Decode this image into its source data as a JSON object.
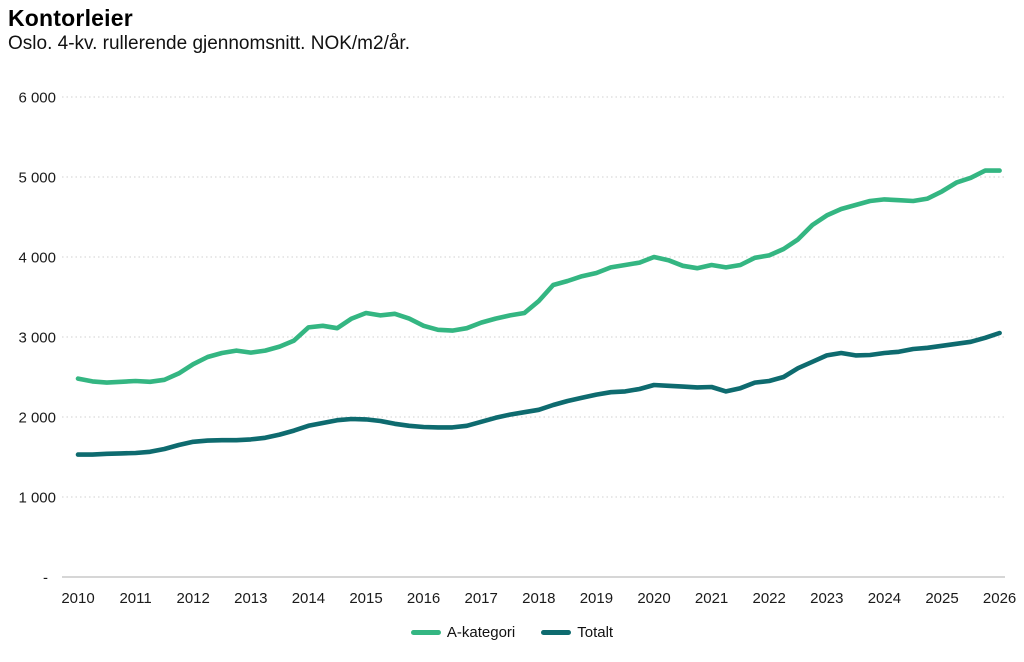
{
  "header": {
    "title": "Kontorleier",
    "subtitle": "Oslo. 4-kv. rullerende gjennomsnitt. NOK/m2/år."
  },
  "colors": {
    "a_kategori": "#34b682",
    "totalt": "#0e6b6f",
    "gridline": "#d9d9d9",
    "axis_line": "#c9c9c9",
    "tick_text": "#1a1a1a"
  },
  "chart_data": {
    "type": "line",
    "title": "Kontorleier",
    "subtitle": "Oslo. 4-kv. rullerende gjennomsnitt. NOK/m2/år.",
    "x_unit": "quarterly",
    "x_start_year": 2010,
    "points_per_year": 4,
    "x_tick_labels": [
      "2010",
      "2011",
      "2012",
      "2013",
      "2014",
      "2015",
      "2016",
      "2017",
      "2018",
      "2019",
      "2020",
      "2021",
      "2022",
      "2023",
      "2024",
      "2025",
      "2026"
    ],
    "y_ticks": [
      {
        "label": "6 000",
        "value": 6000
      },
      {
        "label": "5 000",
        "value": 5000
      },
      {
        "label": "4 000",
        "value": 4000
      },
      {
        "label": "3 000",
        "value": 3000
      },
      {
        "label": "2 000",
        "value": 2000
      },
      {
        "label": "1 000",
        "value": 1000
      },
      {
        "label": "-",
        "value": 0
      }
    ],
    "ylim": [
      0,
      6000
    ],
    "grid": "horizontal-dotted",
    "legend_position": "bottom-center",
    "series": [
      {
        "name": "A-kategori",
        "color_key": "a_kategori",
        "values": [
          2480,
          2445,
          2430,
          2440,
          2450,
          2440,
          2465,
          2545,
          2660,
          2750,
          2800,
          2830,
          2805,
          2830,
          2880,
          2955,
          3120,
          3140,
          3110,
          3230,
          3300,
          3270,
          3290,
          3230,
          3140,
          3090,
          3080,
          3110,
          3180,
          3230,
          3270,
          3300,
          3450,
          3650,
          3700,
          3760,
          3800,
          3870,
          3900,
          3930,
          4000,
          3960,
          3890,
          3860,
          3900,
          3870,
          3900,
          3990,
          4020,
          4100,
          4220,
          4400,
          4520,
          4600,
          4650,
          4700,
          4720,
          4710,
          4700,
          4730,
          4820,
          4930,
          4990,
          5080,
          5080
        ]
      },
      {
        "name": "Totalt",
        "color_key": "totalt",
        "values": [
          1530,
          1530,
          1540,
          1545,
          1550,
          1565,
          1600,
          1650,
          1690,
          1705,
          1710,
          1710,
          1720,
          1740,
          1780,
          1830,
          1890,
          1925,
          1960,
          1975,
          1970,
          1950,
          1915,
          1890,
          1875,
          1870,
          1870,
          1890,
          1940,
          1990,
          2030,
          2060,
          2090,
          2150,
          2200,
          2240,
          2280,
          2310,
          2320,
          2350,
          2400,
          2390,
          2380,
          2370,
          2375,
          2320,
          2360,
          2430,
          2450,
          2500,
          2610,
          2690,
          2770,
          2800,
          2770,
          2775,
          2800,
          2815,
          2850,
          2865,
          2890,
          2915,
          2940,
          2990,
          3050
        ]
      }
    ]
  },
  "legend": {
    "items": [
      {
        "label": "A-kategori",
        "color_key": "a_kategori"
      },
      {
        "label": "Totalt",
        "color_key": "totalt"
      }
    ]
  }
}
